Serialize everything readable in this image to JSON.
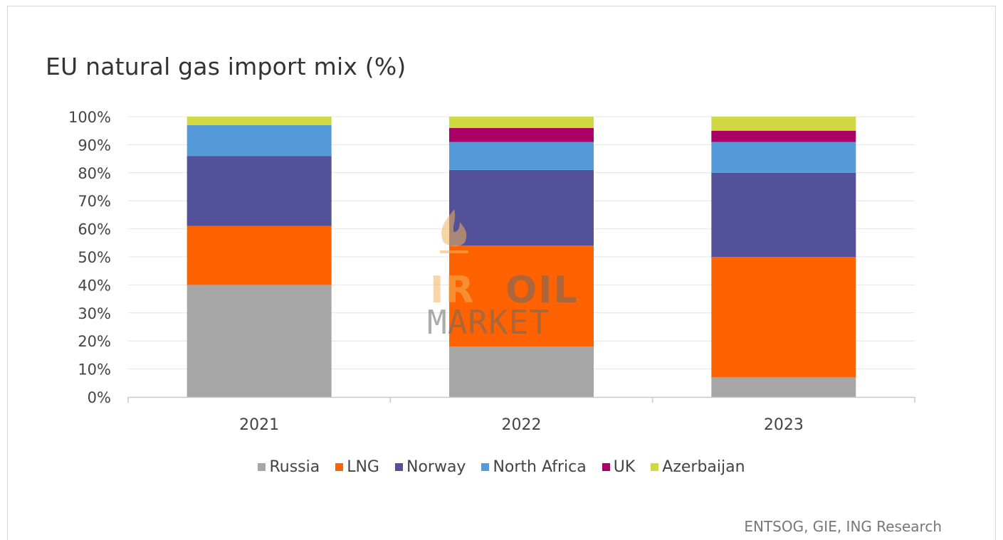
{
  "chart_data": {
    "type": "bar",
    "stacked": true,
    "title": "EU natural gas import mix (%)",
    "xlabel": "",
    "ylabel": "",
    "categories": [
      "2021",
      "2022",
      "2023"
    ],
    "y_ticks": [
      "0%",
      "10%",
      "20%",
      "30%",
      "40%",
      "50%",
      "60%",
      "70%",
      "80%",
      "90%",
      "100%"
    ],
    "ylim": [
      0,
      100
    ],
    "grid": true,
    "legend_position": "bottom",
    "series": [
      {
        "name": "Russia",
        "color": "#a6a6a6",
        "values": [
          40,
          18,
          7
        ]
      },
      {
        "name": "LNG",
        "color": "#ff6200",
        "values": [
          21,
          36,
          43
        ]
      },
      {
        "name": "Norway",
        "color": "#525199",
        "values": [
          25,
          27,
          30
        ]
      },
      {
        "name": "North Africa",
        "color": "#559bd9",
        "values": [
          11,
          10,
          11
        ]
      },
      {
        "name": "UK",
        "color": "#ab0066",
        "values": [
          0,
          5,
          4
        ]
      },
      {
        "name": "Azerbaijan",
        "color": "#d0d941",
        "values": [
          3,
          4,
          5
        ]
      }
    ]
  },
  "source": "ENTSOG, GIE, ING Research",
  "watermark": {
    "part1": "IR",
    "part2": "OIL",
    "part3": "MARKET"
  }
}
